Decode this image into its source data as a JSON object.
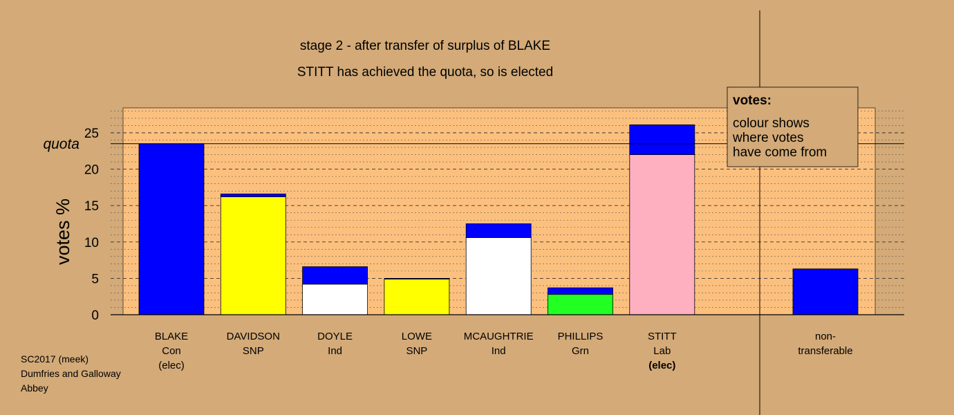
{
  "title": "stage 2 - after transfer of surplus of BLAKE",
  "subtitle": "STITT has achieved the quota, so is elected",
  "footer": [
    "SC2017 (meek)",
    "Dumfries and Galloway",
    "Abbey"
  ],
  "legend": {
    "heading": "votes:",
    "lines": [
      "colour shows",
      "where votes",
      "have come from"
    ]
  },
  "colors": {
    "background": "#d3aa78",
    "plot_area": "#fcc07e",
    "con": "#0000ff",
    "snp": "#ffff00",
    "ind": "#ffffff",
    "grn": "#22ff22",
    "lab": "#ffb0c0"
  },
  "chart_data": {
    "type": "bar",
    "stacked": true,
    "ylabel": "votes %",
    "ylim": [
      0,
      28.5
    ],
    "yticks": [
      0,
      5,
      10,
      15,
      20,
      25
    ],
    "quota": 23.5,
    "quota_label": "quota",
    "grid": "dashed horizontal",
    "categories": [
      {
        "name": "BLAKE",
        "party": "Con",
        "note": "(elec)",
        "note_bold": false
      },
      {
        "name": "DAVIDSON",
        "party": "SNP"
      },
      {
        "name": "DOYLE",
        "party": "Ind"
      },
      {
        "name": "LOWE",
        "party": "SNP"
      },
      {
        "name": "MCAUGHTRIE",
        "party": "Ind"
      },
      {
        "name": "PHILLIPS",
        "party": "Grn"
      },
      {
        "name": "STITT",
        "party": "Lab",
        "note": "(elec)",
        "note_bold": true
      }
    ],
    "bars": [
      [
        {
          "value": 23.5,
          "color": "#0000ff"
        }
      ],
      [
        {
          "value": 16.2,
          "color": "#ffff00"
        },
        {
          "value": 0.4,
          "color": "#0000ff"
        }
      ],
      [
        {
          "value": 4.2,
          "color": "#ffffff"
        },
        {
          "value": 2.4,
          "color": "#0000ff"
        }
      ],
      [
        {
          "value": 4.9,
          "color": "#ffff00"
        },
        {
          "value": 0.1,
          "color": "#0000ff"
        }
      ],
      [
        {
          "value": 10.6,
          "color": "#ffffff"
        },
        {
          "value": 1.9,
          "color": "#0000ff"
        }
      ],
      [
        {
          "value": 2.8,
          "color": "#22ff22"
        },
        {
          "value": 0.9,
          "color": "#0000ff"
        }
      ],
      [
        {
          "value": 22.0,
          "color": "#ffb0c0"
        },
        {
          "value": 4.1,
          "color": "#0000ff"
        }
      ]
    ],
    "nontransferable": {
      "label_lines": [
        "non-",
        "transferable"
      ],
      "segments": [
        {
          "value": 6.3,
          "color": "#0000ff"
        }
      ]
    }
  }
}
